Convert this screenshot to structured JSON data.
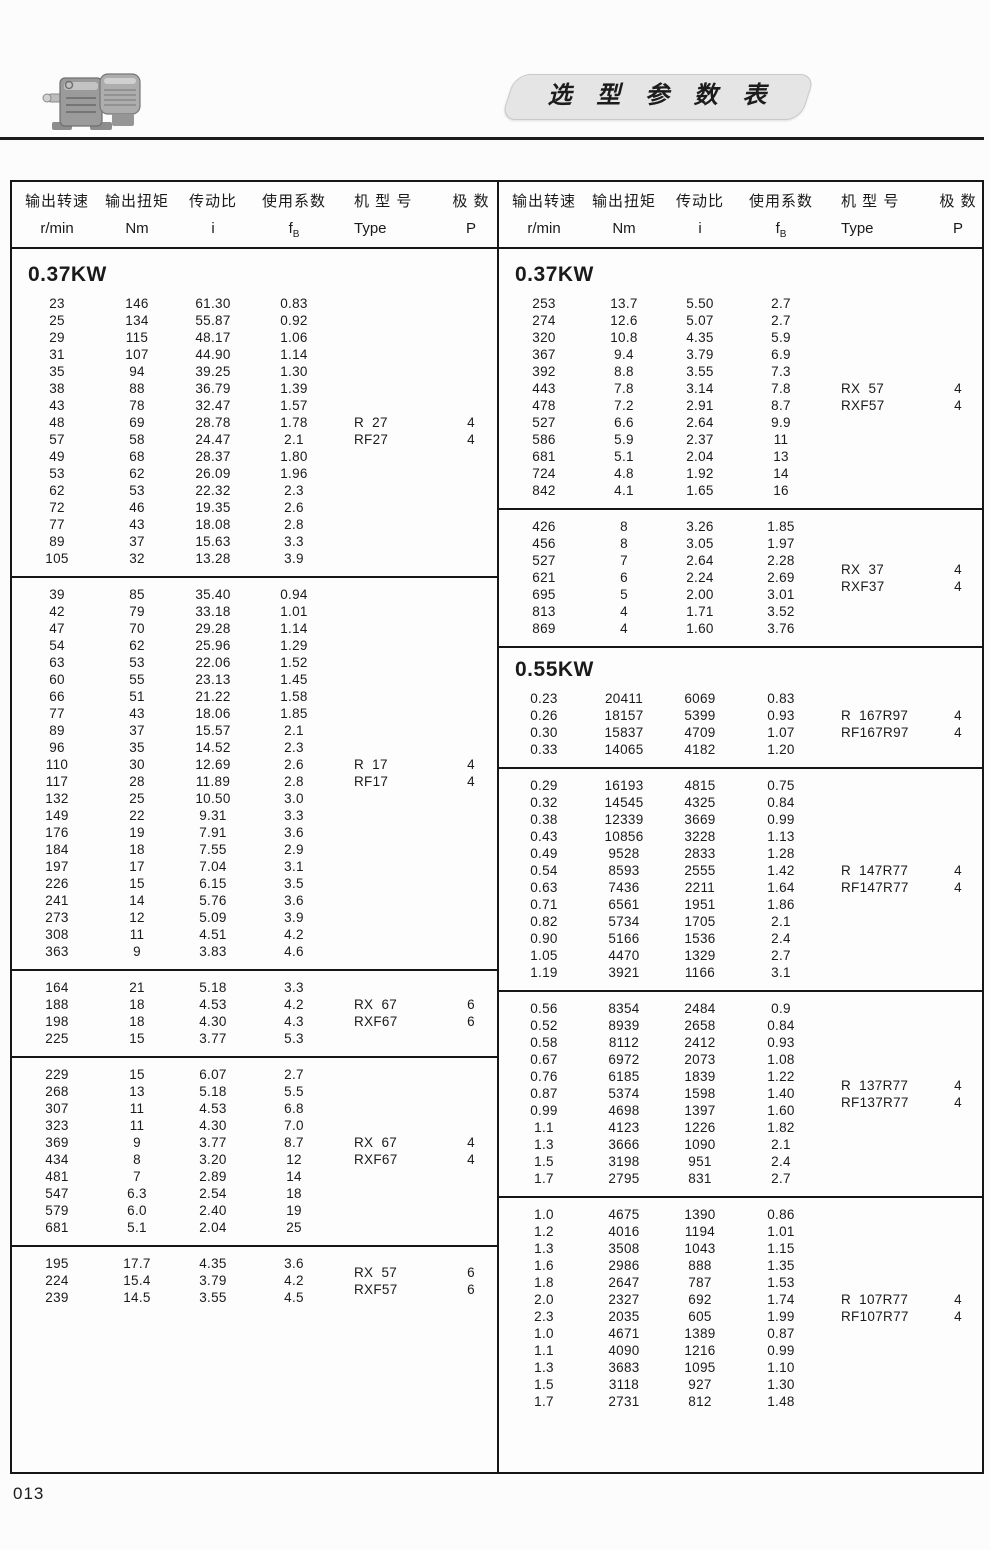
{
  "page": {
    "number": "013"
  },
  "banner": {
    "title": "选 型 参 数 表"
  },
  "motor_image": "gearmotor-photo",
  "columns": [
    {
      "label": "输出转速",
      "unit": "r/min"
    },
    {
      "label": "输出扭矩",
      "unit": "Nm"
    },
    {
      "label": "传动比",
      "unit": "i"
    },
    {
      "label": "使用系数",
      "unit": "f",
      "unit_sub": "B"
    },
    {
      "label": "机 型 号",
      "unit": "Type"
    },
    {
      "label": "极  数",
      "unit": "P"
    }
  ],
  "left_sections": [
    {
      "kw": "0.37KW",
      "rows": [
        [
          "23",
          "146",
          "61.30",
          "0.83"
        ],
        [
          "25",
          "134",
          "55.87",
          "0.92"
        ],
        [
          "29",
          "115",
          "48.17",
          "1.06"
        ],
        [
          "31",
          "107",
          "44.90",
          "1.14"
        ],
        [
          "35",
          "94",
          "39.25",
          "1.30"
        ],
        [
          "38",
          "88",
          "36.79",
          "1.39"
        ],
        [
          "43",
          "78",
          "32.47",
          "1.57"
        ],
        [
          "48",
          "69",
          "28.78",
          "1.78"
        ],
        [
          "57",
          "58",
          "24.47",
          "2.1"
        ],
        [
          "49",
          "68",
          "28.37",
          "1.80"
        ],
        [
          "53",
          "62",
          "26.09",
          "1.96"
        ],
        [
          "62",
          "53",
          "22.32",
          "2.3"
        ],
        [
          "72",
          "46",
          "19.35",
          "2.6"
        ],
        [
          "77",
          "43",
          "18.08",
          "2.8"
        ],
        [
          "89",
          "37",
          "15.63",
          "3.3"
        ],
        [
          "105",
          "32",
          "13.28",
          "3.9"
        ]
      ],
      "types": [
        {
          "label": "R  27",
          "p": "4",
          "row": 7
        },
        {
          "label": "RF27",
          "p": "4",
          "row": 8
        }
      ]
    },
    {
      "rows": [
        [
          "39",
          "85",
          "35.40",
          "0.94"
        ],
        [
          "42",
          "79",
          "33.18",
          "1.01"
        ],
        [
          "47",
          "70",
          "29.28",
          "1.14"
        ],
        [
          "54",
          "62",
          "25.96",
          "1.29"
        ],
        [
          "63",
          "53",
          "22.06",
          "1.52"
        ],
        [
          "60",
          "55",
          "23.13",
          "1.45"
        ],
        [
          "66",
          "51",
          "21.22",
          "1.58"
        ],
        [
          "77",
          "43",
          "18.06",
          "1.85"
        ],
        [
          "89",
          "37",
          "15.57",
          "2.1"
        ],
        [
          "96",
          "35",
          "14.52",
          "2.3"
        ],
        [
          "110",
          "30",
          "12.69",
          "2.6"
        ],
        [
          "117",
          "28",
          "11.89",
          "2.8"
        ],
        [
          "132",
          "25",
          "10.50",
          "3.0"
        ],
        [
          "149",
          "22",
          "9.31",
          "3.3"
        ],
        [
          "176",
          "19",
          "7.91",
          "3.6"
        ],
        [
          "184",
          "18",
          "7.55",
          "2.9"
        ],
        [
          "197",
          "17",
          "7.04",
          "3.1"
        ],
        [
          "226",
          "15",
          "6.15",
          "3.5"
        ],
        [
          "241",
          "14",
          "5.76",
          "3.6"
        ],
        [
          "273",
          "12",
          "5.09",
          "3.9"
        ],
        [
          "308",
          "11",
          "4.51",
          "4.2"
        ],
        [
          "363",
          "9",
          "3.83",
          "4.6"
        ]
      ],
      "types": [
        {
          "label": "R  17",
          "p": "4",
          "row": 10
        },
        {
          "label": "RF17",
          "p": "4",
          "row": 11
        }
      ]
    },
    {
      "rows": [
        [
          "164",
          "21",
          "5.18",
          "3.3"
        ],
        [
          "188",
          "18",
          "4.53",
          "4.2"
        ],
        [
          "198",
          "18",
          "4.30",
          "4.3"
        ],
        [
          "225",
          "15",
          "3.77",
          "5.3"
        ]
      ],
      "types": [
        {
          "label": "RX  67",
          "p": "6",
          "row": 1
        },
        {
          "label": "RXF67",
          "p": "6",
          "row": 2
        }
      ]
    },
    {
      "rows": [
        [
          "229",
          "15",
          "6.07",
          "2.7"
        ],
        [
          "268",
          "13",
          "5.18",
          "5.5"
        ],
        [
          "307",
          "11",
          "4.53",
          "6.8"
        ],
        [
          "323",
          "11",
          "4.30",
          "7.0"
        ],
        [
          "369",
          "9",
          "3.77",
          "8.7"
        ],
        [
          "434",
          "8",
          "3.20",
          "12"
        ],
        [
          "481",
          "7",
          "2.89",
          "14"
        ],
        [
          "547",
          "6.3",
          "2.54",
          "18"
        ],
        [
          "579",
          "6.0",
          "2.40",
          "19"
        ],
        [
          "681",
          "5.1",
          "2.04",
          "25"
        ]
      ],
      "types": [
        {
          "label": "RX  67",
          "p": "4",
          "row": 4
        },
        {
          "label": "RXF67",
          "p": "4",
          "row": 5
        }
      ]
    },
    {
      "rows": [
        [
          "195",
          "17.7",
          "4.35",
          "3.6"
        ],
        [
          "224",
          "15.4",
          "3.79",
          "4.2"
        ],
        [
          "239",
          "14.5",
          "3.55",
          "4.5"
        ]
      ],
      "types": [
        {
          "label": "RX  57",
          "p": "6",
          "row": 0.5
        },
        {
          "label": "RXF57",
          "p": "6",
          "row": 1.5
        }
      ]
    }
  ],
  "right_sections": [
    {
      "kw": "0.37KW",
      "rows": [
        [
          "253",
          "13.7",
          "5.50",
          "2.7"
        ],
        [
          "274",
          "12.6",
          "5.07",
          "2.7"
        ],
        [
          "320",
          "10.8",
          "4.35",
          "5.9"
        ],
        [
          "367",
          "9.4",
          "3.79",
          "6.9"
        ],
        [
          "392",
          "8.8",
          "3.55",
          "7.3"
        ],
        [
          "443",
          "7.8",
          "3.14",
          "7.8"
        ],
        [
          "478",
          "7.2",
          "2.91",
          "8.7"
        ],
        [
          "527",
          "6.6",
          "2.64",
          "9.9"
        ],
        [
          "586",
          "5.9",
          "2.37",
          "11"
        ],
        [
          "681",
          "5.1",
          "2.04",
          "13"
        ],
        [
          "724",
          "4.8",
          "1.92",
          "14"
        ],
        [
          "842",
          "4.1",
          "1.65",
          "16"
        ]
      ],
      "types": [
        {
          "label": "RX  57",
          "p": "4",
          "row": 5
        },
        {
          "label": "RXF57",
          "p": "4",
          "row": 6
        }
      ]
    },
    {
      "rows": [
        [
          "426",
          "8",
          "3.26",
          "1.85"
        ],
        [
          "456",
          "8",
          "3.05",
          "1.97"
        ],
        [
          "527",
          "7",
          "2.64",
          "2.28"
        ],
        [
          "621",
          "6",
          "2.24",
          "2.69"
        ],
        [
          "695",
          "5",
          "2.00",
          "3.01"
        ],
        [
          "813",
          "4",
          "1.71",
          "3.52"
        ],
        [
          "869",
          "4",
          "1.60",
          "3.76"
        ]
      ],
      "types": [
        {
          "label": "RX  37",
          "p": "4",
          "row": 2.5
        },
        {
          "label": "RXF37",
          "p": "4",
          "row": 3.5
        }
      ]
    },
    {
      "kw": "0.55KW",
      "rows": [
        [
          "0.23",
          "20411",
          "6069",
          "0.83"
        ],
        [
          "0.26",
          "18157",
          "5399",
          "0.93"
        ],
        [
          "0.30",
          "15837",
          "4709",
          "1.07"
        ],
        [
          "0.33",
          "14065",
          "4182",
          "1.20"
        ]
      ],
      "types": [
        {
          "label": "R  167R97",
          "p": "4",
          "row": 1
        },
        {
          "label": "RF167R97",
          "p": "4",
          "row": 2
        }
      ]
    },
    {
      "rows": [
        [
          "0.29",
          "16193",
          "4815",
          "0.75"
        ],
        [
          "0.32",
          "14545",
          "4325",
          "0.84"
        ],
        [
          "0.38",
          "12339",
          "3669",
          "0.99"
        ],
        [
          "0.43",
          "10856",
          "3228",
          "1.13"
        ],
        [
          "0.49",
          "9528",
          "2833",
          "1.28"
        ],
        [
          "0.54",
          "8593",
          "2555",
          "1.42"
        ],
        [
          "0.63",
          "7436",
          "2211",
          "1.64"
        ],
        [
          "0.71",
          "6561",
          "1951",
          "1.86"
        ],
        [
          "0.82",
          "5734",
          "1705",
          "2.1"
        ],
        [
          "0.90",
          "5166",
          "1536",
          "2.4"
        ],
        [
          "1.05",
          "4470",
          "1329",
          "2.7"
        ],
        [
          "1.19",
          "3921",
          "1166",
          "3.1"
        ]
      ],
      "types": [
        {
          "label": "R  147R77",
          "p": "4",
          "row": 5
        },
        {
          "label": "RF147R77",
          "p": "4",
          "row": 6
        }
      ]
    },
    {
      "rows": [
        [
          "0.56",
          "8354",
          "2484",
          "0.9"
        ],
        [
          "0.52",
          "8939",
          "2658",
          "0.84"
        ],
        [
          "0.58",
          "8112",
          "2412",
          "0.93"
        ],
        [
          "0.67",
          "6972",
          "2073",
          "1.08"
        ],
        [
          "0.76",
          "6185",
          "1839",
          "1.22"
        ],
        [
          "0.87",
          "5374",
          "1598",
          "1.40"
        ],
        [
          "0.99",
          "4698",
          "1397",
          "1.60"
        ],
        [
          "1.1",
          "4123",
          "1226",
          "1.82"
        ],
        [
          "1.3",
          "3666",
          "1090",
          "2.1"
        ],
        [
          "1.5",
          "3198",
          "951",
          "2.4"
        ],
        [
          "1.7",
          "2795",
          "831",
          "2.7"
        ]
      ],
      "types": [
        {
          "label": "R  137R77",
          "p": "4",
          "row": 4.5
        },
        {
          "label": "RF137R77",
          "p": "4",
          "row": 5.5
        }
      ]
    },
    {
      "rows": [
        [
          "1.0",
          "4675",
          "1390",
          "0.86"
        ],
        [
          "1.2",
          "4016",
          "1194",
          "1.01"
        ],
        [
          "1.3",
          "3508",
          "1043",
          "1.15"
        ],
        [
          "1.6",
          "2986",
          "888",
          "1.35"
        ],
        [
          "1.8",
          "2647",
          "787",
          "1.53"
        ],
        [
          "2.0",
          "2327",
          "692",
          "1.74"
        ],
        [
          "2.3",
          "2035",
          "605",
          "1.99"
        ],
        [
          "1.0",
          "4671",
          "1389",
          "0.87"
        ],
        [
          "1.1",
          "4090",
          "1216",
          "0.99"
        ],
        [
          "1.3",
          "3683",
          "1095",
          "1.10"
        ],
        [
          "1.5",
          "3118",
          "927",
          "1.30"
        ],
        [
          "1.7",
          "2731",
          "812",
          "1.48"
        ]
      ],
      "types": [
        {
          "label": "R  107R77",
          "p": "4",
          "row": 5
        },
        {
          "label": "RF107R77",
          "p": "4",
          "row": 6
        }
      ]
    }
  ]
}
